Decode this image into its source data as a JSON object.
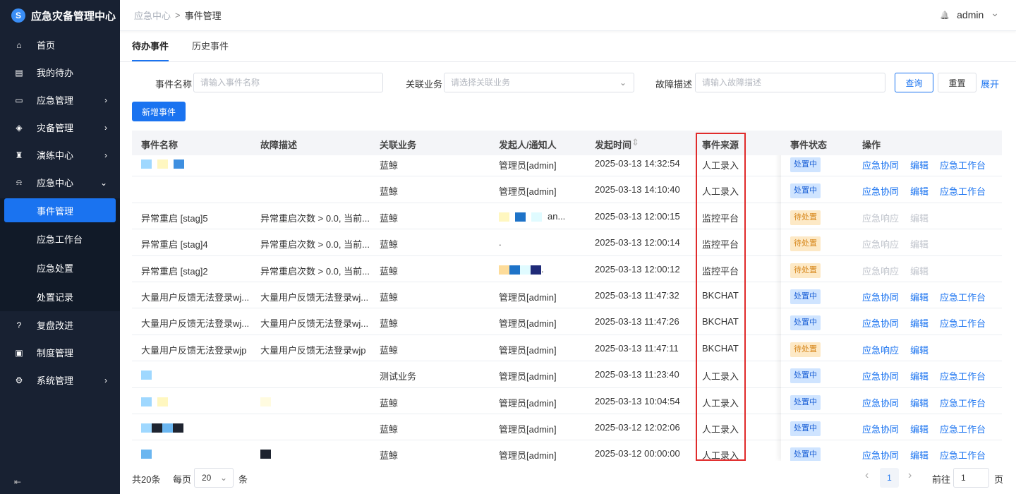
{
  "app": {
    "title": "应急灾备管理中心"
  },
  "sidebar": {
    "items": [
      {
        "label": "首页",
        "icon": "home-icon",
        "glyph": "⌂"
      },
      {
        "label": "我的待办",
        "icon": "calendar-icon",
        "glyph": "▤"
      },
      {
        "label": "应急管理",
        "icon": "monitor-icon",
        "glyph": "▭",
        "chev": "›"
      },
      {
        "label": "灾备管理",
        "icon": "layers-icon",
        "glyph": "◈",
        "chev": "›"
      },
      {
        "label": "演练中心",
        "icon": "drill-icon",
        "glyph": "♜",
        "chev": "›"
      },
      {
        "label": "应急中心",
        "icon": "alarm-icon",
        "glyph": "⍾",
        "chev": "⌄"
      }
    ],
    "sub": [
      "事件管理",
      "应急工作台",
      "应急处置",
      "处置记录"
    ],
    "items2": [
      {
        "label": "复盘改进",
        "icon": "question-icon",
        "glyph": "?"
      },
      {
        "label": "制度管理",
        "icon": "document-icon",
        "glyph": "▣"
      },
      {
        "label": "系统管理",
        "icon": "settings-icon",
        "glyph": "⚙",
        "chev": "›"
      }
    ],
    "collapse": "⇤"
  },
  "header": {
    "breadcrumb": [
      "应急中心",
      "事件管理"
    ],
    "sep": ">",
    "user": "admin",
    "bell": "🔔",
    "caret": "⌄"
  },
  "tabs": [
    "待办事件",
    "历史事件"
  ],
  "filters": {
    "name_label": "事件名称",
    "name_placeholder": "请输入事件名称",
    "biz_label": "关联业务",
    "biz_placeholder": "请选择关联业务",
    "desc_label": "故障描述",
    "desc_placeholder": "请输入故障描述",
    "query": "查询",
    "reset": "重置",
    "expand": "展开",
    "add": "新增事件"
  },
  "table": {
    "columns": [
      "事件名称",
      "故障描述",
      "关联业务",
      "发起人/通知人",
      "发起时间",
      "事件来源",
      "事件状态",
      "操作"
    ],
    "sort_icon": "⇕",
    "rows": [
      {
        "name": "",
        "name_blocks": [
          "#9fd8ff",
          "#fff7c0",
          "#3e8fe0"
        ],
        "desc": "",
        "biz": "蓝鲸",
        "person": "管理员[admin]",
        "time": "2025-03-13 14:32:54",
        "source": "人工录入",
        "status": "处置中",
        "ops": [
          "应急协同",
          "编辑",
          "应急工作台"
        ]
      },
      {
        "name": "",
        "desc": "",
        "biz": "蓝鲸",
        "person": "管理员[admin]",
        "time": "2025-03-13 14:10:40",
        "source": "人工录入",
        "status": "处置中",
        "ops": [
          "应急协同",
          "编辑",
          "应急工作台"
        ]
      },
      {
        "name": "异常重启 [stag]5",
        "desc": "异常重启次数 > 0.0, 当前...",
        "biz": "蓝鲸",
        "person": "an...",
        "person_blocks": [
          "#fff7c0",
          "#1e73c8",
          "#e0fbff"
        ],
        "time": "2025-03-13 12:00:15",
        "source": "监控平台",
        "status": "待处置",
        "ops": [
          "应急响应",
          "编辑"
        ]
      },
      {
        "name": "异常重启 [stag]4",
        "desc": "异常重启次数 > 0.0, 当前...",
        "biz": "蓝鲸",
        "person": ".",
        "time": "2025-03-13 12:00:14",
        "source": "监控平台",
        "status": "待处置",
        "ops": [
          "应急响应",
          "编辑"
        ]
      },
      {
        "name": "异常重启 [stag]2",
        "desc": "异常重启次数 > 0.0, 当前...",
        "biz": "蓝鲸",
        "person": ".",
        "person_blocks": [
          "#fddc9a",
          "#1e73c8",
          "#e0fbff",
          "#1f2a78"
        ],
        "time": "2025-03-13 12:00:12",
        "source": "监控平台",
        "status": "待处置",
        "ops": [
          "应急响应",
          "编辑"
        ]
      },
      {
        "name": "大量用户反馈无法登录wj...",
        "desc": "大量用户反馈无法登录wj...",
        "biz": "蓝鲸",
        "person": "管理员[admin]",
        "time": "2025-03-13 11:47:32",
        "source": "BKCHAT",
        "status": "处置中",
        "ops": [
          "应急协同",
          "编辑",
          "应急工作台"
        ]
      },
      {
        "name": "大量用户反馈无法登录wj...",
        "desc": "大量用户反馈无法登录wj...",
        "biz": "蓝鲸",
        "person": "管理员[admin]",
        "time": "2025-03-13 11:47:26",
        "source": "BKCHAT",
        "status": "处置中",
        "ops": [
          "应急协同",
          "编辑",
          "应急工作台"
        ]
      },
      {
        "name": "大量用户反馈无法登录wjp",
        "desc": "大量用户反馈无法登录wjp",
        "biz": "蓝鲸",
        "person": "管理员[admin]",
        "time": "2025-03-13 11:47:11",
        "source": "BKCHAT",
        "status": "待处置",
        "ops": [
          "应急响应",
          "编辑"
        ],
        "ops_enabled": true
      },
      {
        "name": "",
        "name_blocks": [
          "#9fd8ff"
        ],
        "desc": "",
        "biz": "测试业务",
        "person": "管理员[admin]",
        "time": "2025-03-13 11:23:40",
        "source": "人工录入",
        "status": "处置中",
        "ops": [
          "应急协同",
          "编辑",
          "应急工作台"
        ]
      },
      {
        "name": "",
        "name_blocks": [
          "#9fd8ff",
          "#fff7c0"
        ],
        "desc": "",
        "desc_blocks": [
          "#fffbe0"
        ],
        "biz": "蓝鲸",
        "person": "管理员[admin]",
        "time": "2025-03-13 10:04:54",
        "source": "人工录入",
        "status": "处置中",
        "ops": [
          "应急协同",
          "编辑",
          "应急工作台"
        ]
      },
      {
        "name": "",
        "name_blocks": [
          "#9fd8ff",
          "#1e2430",
          "#6bb6f0",
          "#1e2430"
        ],
        "desc": "",
        "biz": "蓝鲸",
        "person": "管理员[admin]",
        "time": "2025-03-12 12:02:06",
        "source": "人工录入",
        "status": "处置中",
        "ops": [
          "应急协同",
          "编辑",
          "应急工作台"
        ]
      },
      {
        "name": "",
        "name_blocks": [
          "#6bb6f0"
        ],
        "desc": "",
        "desc_blocks": [
          "#1e2430"
        ],
        "biz": "蓝鲸",
        "person": "管理员[admin]",
        "time": "2025-03-12 00:00:00",
        "source": "人工录入",
        "status": "处置中",
        "ops": [
          "应急协同",
          "编辑",
          "应急工作台"
        ]
      }
    ]
  },
  "pagination": {
    "total": "共20条",
    "per_page_label": "每页",
    "per_page": "20",
    "unit": "条",
    "prev": "‹",
    "current": "1",
    "next": "›",
    "goto_label": "前往",
    "goto_value": "1",
    "page_unit": "页"
  }
}
